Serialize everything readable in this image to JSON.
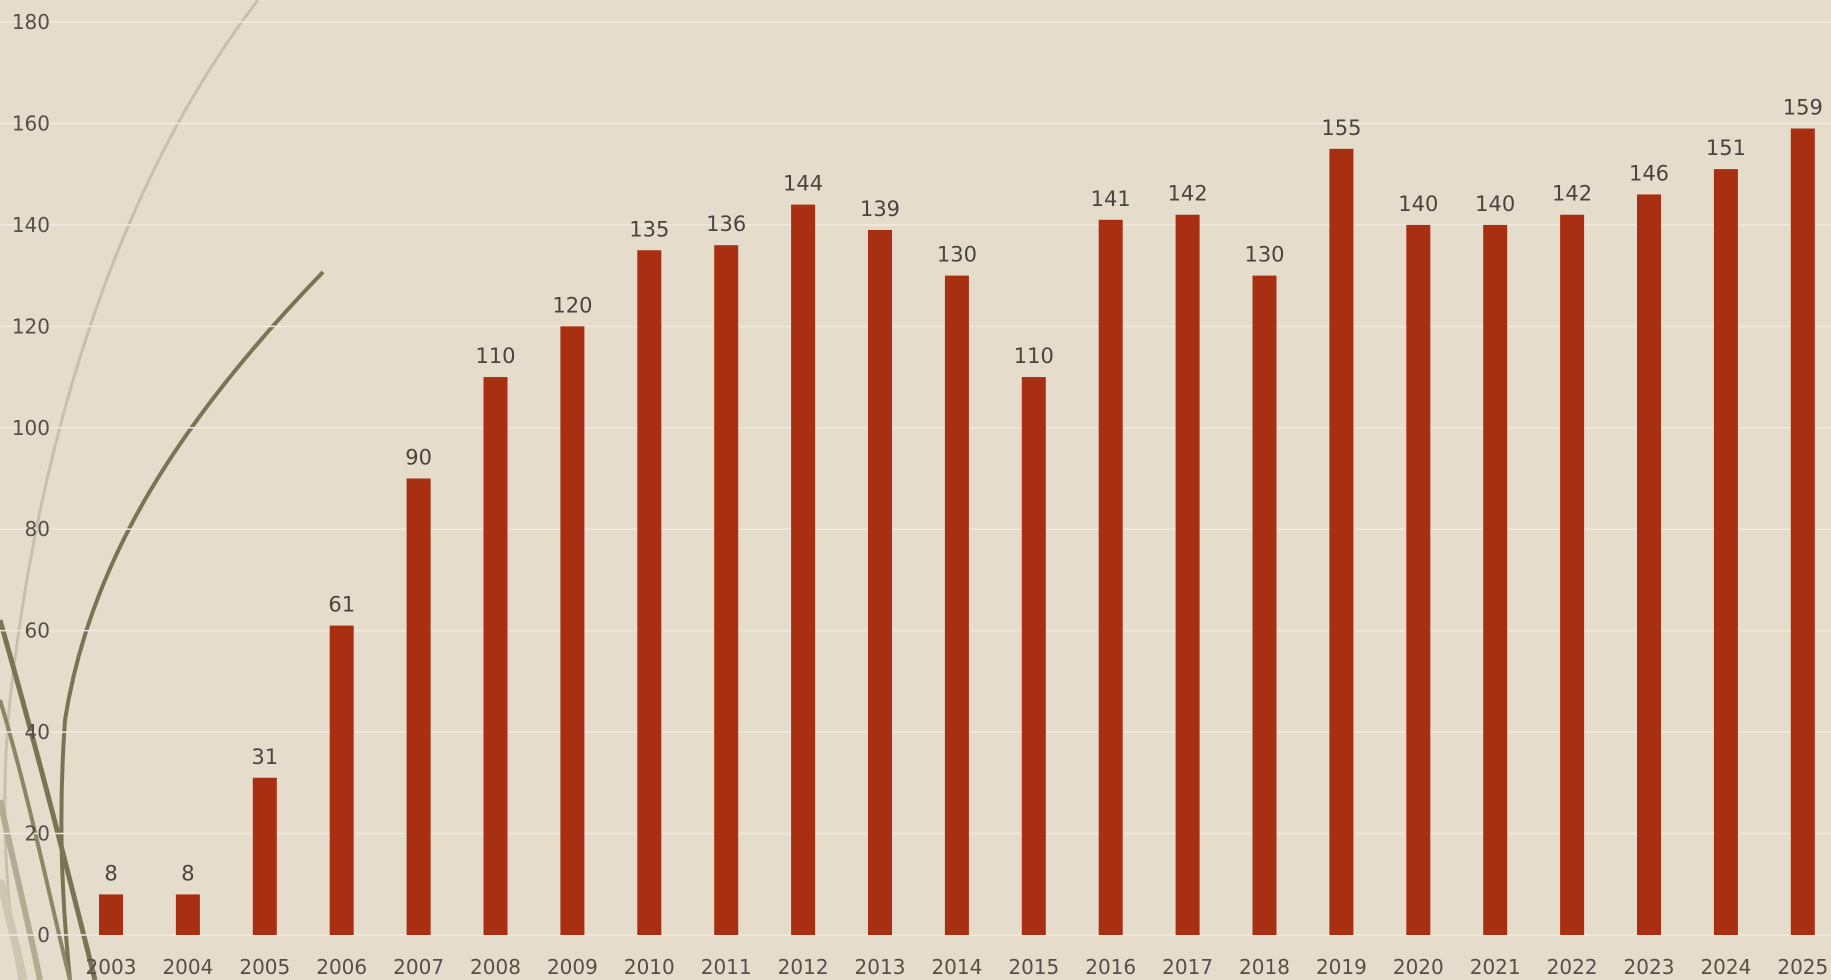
{
  "chart_data": {
    "type": "bar",
    "title": "",
    "xlabel": "",
    "ylabel": "",
    "ylim": [
      0,
      180
    ],
    "yticks": [
      0,
      20,
      40,
      60,
      80,
      100,
      120,
      140,
      160,
      180
    ],
    "grid": true,
    "legend": "none",
    "categories": [
      "2003",
      "2004",
      "2005",
      "2006",
      "2007",
      "2008",
      "2009",
      "2010",
      "2011",
      "2012",
      "2013",
      "2014",
      "2015",
      "2016",
      "2017",
      "2018",
      "2019",
      "2020",
      "2021",
      "2022",
      "2023",
      "2024",
      "2025"
    ],
    "values": [
      8,
      8,
      31,
      61,
      90,
      110,
      120,
      135,
      136,
      144,
      139,
      130,
      110,
      141,
      142,
      130,
      155,
      140,
      140,
      142,
      146,
      151,
      159
    ],
    "data_labels": [
      "8",
      "8",
      "31",
      "61",
      "90",
      "110",
      "120",
      "135",
      "136",
      "144",
      "139",
      "130",
      "110",
      "141",
      "142",
      "130",
      "155",
      "140",
      "140",
      "142",
      "146",
      "151",
      "159"
    ],
    "colors": {
      "bar": "#a82f12",
      "background": "#e6dccc",
      "grid": "#f0e9de",
      "decor": "#7a7455"
    }
  }
}
